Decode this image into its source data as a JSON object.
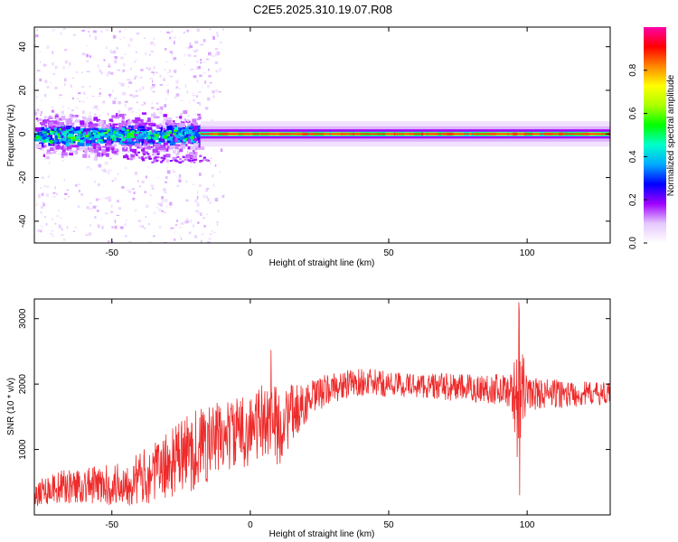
{
  "title": "C2E5.2025.310.19.07.R08",
  "colors": {
    "snr_line": "#ee2a2a",
    "carrier_line": "#ff3300",
    "axis": "#000000",
    "colorbar_stops": [
      "#ffffff",
      "#e6c8ff",
      "#a000ff",
      "#0000ff",
      "#00aaff",
      "#00ffcc",
      "#00ff00",
      "#aaff00",
      "#ffff00",
      "#ff8800",
      "#ff0000",
      "#ff00aa"
    ]
  },
  "chart_data": [
    {
      "type": "heatmap",
      "name": "spectrogram",
      "xlabel": "Height of straight line (km)",
      "ylabel": "Frequency (Hz)",
      "xlim": [
        -78,
        130
      ],
      "ylim": [
        -50,
        49
      ],
      "xticks": [
        -50,
        0,
        50,
        100
      ],
      "yticks": [
        -40,
        -20,
        0,
        20,
        40
      ],
      "colorbar": {
        "label": "Normalized spectral amplitude",
        "range": [
          0,
          1
        ],
        "ticks": [
          "0.0",
          "0.2",
          "0.4",
          "0.6",
          "0.8"
        ],
        "tick_values": [
          0,
          0.2,
          0.4,
          0.6,
          0.8
        ]
      },
      "features": {
        "carrier_frequency_hz": 0,
        "scintillation_region_km": [
          -78,
          -18
        ],
        "scintillation_spread_hz": [
          -6,
          6
        ],
        "secondary_trace": {
          "x": [
            -45,
            -15
          ],
          "y": [
            -10,
            -12
          ]
        },
        "stable_region_km": [
          -18,
          130
        ]
      }
    },
    {
      "type": "line",
      "name": "snr",
      "xlabel": "Height of straight line (km)",
      "ylabel": "SNR (10 * v/v)",
      "xlim": [
        -78,
        130
      ],
      "ylim": [
        0,
        3300
      ],
      "xticks": [
        -50,
        0,
        50,
        100
      ],
      "yticks": [
        1000,
        2000,
        3000
      ],
      "series": [
        {
          "envelope": {
            "x": [
              -78,
              -70,
              -60,
              -50,
              -40,
              -30,
              -25,
              -20,
              -15,
              -10,
              -5,
              0,
              5,
              8,
              10,
              15,
              20,
              25,
              30,
              40,
              50,
              60,
              70,
              80,
              90,
              94,
              96,
              97,
              98,
              100,
              110,
              120,
              130
            ],
            "y": [
              350,
              420,
              450,
              450,
              550,
              750,
              900,
              1000,
              1100,
              1200,
              1250,
              1300,
              1450,
              1500,
              1300,
              1550,
              1700,
              1850,
              1950,
              2030,
              2000,
              1980,
              1960,
              1930,
              1930,
              1900,
              1800,
              1850,
              1900,
              1860,
              1850,
              1850,
              1860
            ]
          },
          "spread": {
            "x": [
              -78,
              -50,
              -30,
              -20,
              -10,
              0,
              10,
              20,
              30,
              60,
              94,
              96,
              97,
              98,
              100,
              130
            ],
            "y": [
              220,
              320,
              500,
              650,
              550,
              550,
              600,
              300,
              230,
              190,
              250,
              700,
              1400,
              700,
              260,
              160
            ]
          },
          "extremes": [
            {
              "x": 7.5,
              "y": 2520
            },
            {
              "x": 97,
              "y": 3250
            },
            {
              "x": 97.3,
              "y": 300
            }
          ]
        }
      ]
    }
  ]
}
